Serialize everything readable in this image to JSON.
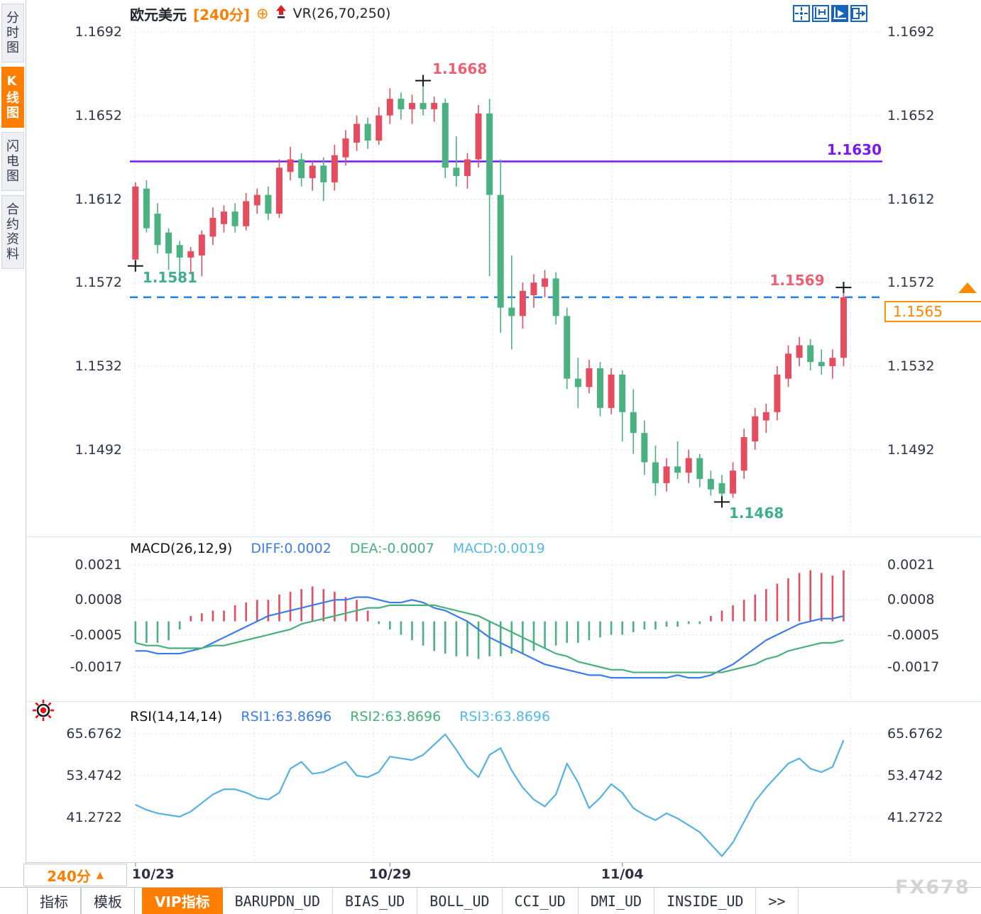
{
  "header": {
    "symbol": "欧元美元",
    "period": "[240分]",
    "indicator": "VR(26,70,250)"
  },
  "toolbar": {
    "icons": [
      {
        "name": "pan-crosshair-icon",
        "active": false
      },
      {
        "name": "y-axis-scale-icon",
        "active": false
      },
      {
        "name": "auto-scroll-icon",
        "active": true
      },
      {
        "name": "jump-latest-icon",
        "active": false
      }
    ]
  },
  "sidebar": {
    "items": [
      {
        "label": "分时图",
        "active": false
      },
      {
        "label": "K线图",
        "active": true
      },
      {
        "label": "闪电图",
        "active": false
      },
      {
        "label": "合约资料",
        "active": false
      }
    ]
  },
  "bottom": {
    "period_label": "240分",
    "period_arrow": "▲",
    "tabs": [
      {
        "label": "指标",
        "style": "cn",
        "active": false
      },
      {
        "label": "模板",
        "style": "cn",
        "active": false
      },
      {
        "label": "VIP指标",
        "style": "cn",
        "active": true
      },
      {
        "label": "BARUPDN_UD",
        "style": "mono",
        "active": false
      },
      {
        "label": "BIAS_UD",
        "style": "mono",
        "active": false
      },
      {
        "label": "BOLL_UD",
        "style": "mono",
        "active": false
      },
      {
        "label": "CCI_UD",
        "style": "mono",
        "active": false
      },
      {
        "label": "DMI_UD",
        "style": "mono",
        "active": false
      },
      {
        "label": "INSIDE_UD",
        "style": "mono",
        "active": false
      },
      {
        "label": ">>",
        "style": "mono",
        "active": false
      }
    ]
  },
  "watermark": "FX678",
  "colors": {
    "up": "#e44d5f",
    "down": "#4bb181",
    "purple_line": "#7a16f2",
    "blue_dashed": "#1e7fe8",
    "diff_line": "#3b7ce8",
    "dea_line": "#47b07a",
    "macd_cyan": "#55b9e8",
    "rsi_line": "#55b1e3",
    "accent_orange": "#ff7e00",
    "anno_red": "#ee5f73",
    "anno_green": "#3fae8c"
  },
  "chart_data": [
    {
      "type": "candlestick",
      "title": "欧元美元 240分",
      "y_ticks": [
        "1.1692",
        "1.1652",
        "1.1612",
        "1.1572",
        "1.1532",
        "1.1492"
      ],
      "y_tick_values": [
        1.1692,
        1.1652,
        1.1612,
        1.1572,
        1.1532,
        1.1492
      ],
      "x_ticks": [
        {
          "label": "10/23",
          "index": 0
        },
        {
          "label": "10/29",
          "index": 23
        },
        {
          "label": "11/04",
          "index": 44
        }
      ],
      "hlines": [
        {
          "value": 1.163,
          "label": "1.1630",
          "style": "solid",
          "color": "#7a16f2"
        },
        {
          "value": 1.1565,
          "label": "1.1565",
          "style": "dashed",
          "color": "#1e7fe8"
        }
      ],
      "price_box": "1.1565",
      "annotations": [
        {
          "text": "1.1581",
          "price": 1.1581,
          "index": 0,
          "color": "#3fae8c",
          "placement": "below-right"
        },
        {
          "text": "1.1668",
          "price": 1.1668,
          "index": 26,
          "color": "#ee5f73",
          "placement": "above-right"
        },
        {
          "text": "1.1569",
          "price": 1.1569,
          "index": 64,
          "color": "#ee5f73",
          "placement": "above-left"
        },
        {
          "text": "1.1468",
          "price": 1.1468,
          "index": 53,
          "color": "#3fae8c",
          "placement": "below-right"
        }
      ],
      "candles": [
        [
          1.1583,
          1.162,
          1.1581,
          1.1618
        ],
        [
          1.1617,
          1.1621,
          1.1596,
          1.1598
        ],
        [
          1.1605,
          1.161,
          1.1586,
          1.159
        ],
        [
          1.1596,
          1.1598,
          1.1578,
          1.1586
        ],
        [
          1.159,
          1.1592,
          1.1574,
          1.1584
        ],
        [
          1.1584,
          1.1589,
          1.1576,
          1.1587
        ],
        [
          1.1585,
          1.1597,
          1.1575,
          1.1595
        ],
        [
          1.1594,
          1.1608,
          1.159,
          1.1603
        ],
        [
          1.16,
          1.1609,
          1.1596,
          1.1606
        ],
        [
          1.1606,
          1.161,
          1.1596,
          1.1599
        ],
        [
          1.1599,
          1.1615,
          1.1597,
          1.1611
        ],
        [
          1.1609,
          1.1617,
          1.1605,
          1.1614
        ],
        [
          1.1614,
          1.1618,
          1.1602,
          1.1605
        ],
        [
          1.1605,
          1.1631,
          1.1603,
          1.1627
        ],
        [
          1.1625,
          1.1637,
          1.1621,
          1.1631
        ],
        [
          1.1631,
          1.1634,
          1.1618,
          1.1622
        ],
        [
          1.1622,
          1.163,
          1.1616,
          1.1628
        ],
        [
          1.1628,
          1.1632,
          1.1611,
          1.162
        ],
        [
          1.162,
          1.1638,
          1.1616,
          1.1633
        ],
        [
          1.1632,
          1.1645,
          1.1628,
          1.1641
        ],
        [
          1.1639,
          1.1652,
          1.1635,
          1.1648
        ],
        [
          1.1648,
          1.1651,
          1.1636,
          1.164
        ],
        [
          1.164,
          1.1656,
          1.1638,
          1.1652
        ],
        [
          1.1652,
          1.1665,
          1.1648,
          1.166
        ],
        [
          1.166,
          1.1663,
          1.165,
          1.1655
        ],
        [
          1.1655,
          1.1662,
          1.1648,
          1.1658
        ],
        [
          1.1658,
          1.1668,
          1.1652,
          1.1655
        ],
        [
          1.1655,
          1.1661,
          1.1649,
          1.1658
        ],
        [
          1.1658,
          1.166,
          1.1622,
          1.1627
        ],
        [
          1.1627,
          1.1642,
          1.1618,
          1.1623
        ],
        [
          1.1623,
          1.1634,
          1.1617,
          1.1631
        ],
        [
          1.1631,
          1.1657,
          1.1627,
          1.1653
        ],
        [
          1.1653,
          1.166,
          1.1575,
          1.1614
        ],
        [
          1.1614,
          1.1631,
          1.1548,
          1.156
        ],
        [
          1.156,
          1.1585,
          1.154,
          1.1556
        ],
        [
          1.1556,
          1.1572,
          1.155,
          1.1568
        ],
        [
          1.1566,
          1.1576,
          1.156,
          1.1572
        ],
        [
          1.157,
          1.1578,
          1.1565,
          1.1574
        ],
        [
          1.1574,
          1.1577,
          1.1552,
          1.1556
        ],
        [
          1.1556,
          1.156,
          1.1521,
          1.1526
        ],
        [
          1.1526,
          1.1536,
          1.1512,
          1.1522
        ],
        [
          1.1522,
          1.1535,
          1.1519,
          1.1531
        ],
        [
          1.1531,
          1.1534,
          1.1508,
          1.1512
        ],
        [
          1.1512,
          1.1531,
          1.1509,
          1.1528
        ],
        [
          1.1528,
          1.153,
          1.1496,
          1.151
        ],
        [
          1.151,
          1.1521,
          1.149,
          1.15
        ],
        [
          1.15,
          1.1506,
          1.148,
          1.1486
        ],
        [
          1.1486,
          1.1494,
          1.147,
          1.1476
        ],
        [
          1.1476,
          1.1488,
          1.1472,
          1.1484
        ],
        [
          1.1484,
          1.1496,
          1.1478,
          1.1481
        ],
        [
          1.1481,
          1.1492,
          1.1476,
          1.1488
        ],
        [
          1.1488,
          1.149,
          1.1474,
          1.1478
        ],
        [
          1.1478,
          1.1482,
          1.147,
          1.1473
        ],
        [
          1.1476,
          1.148,
          1.1468,
          1.1471
        ],
        [
          1.1471,
          1.1486,
          1.1469,
          1.1482
        ],
        [
          1.1482,
          1.1502,
          1.1478,
          1.1498
        ],
        [
          1.1496,
          1.1512,
          1.1492,
          1.1508
        ],
        [
          1.1506,
          1.1514,
          1.15,
          1.151
        ],
        [
          1.151,
          1.1532,
          1.1506,
          1.1528
        ],
        [
          1.1526,
          1.1542,
          1.1522,
          1.1538
        ],
        [
          1.1536,
          1.1546,
          1.1532,
          1.1542
        ],
        [
          1.1542,
          1.1545,
          1.153,
          1.1534
        ],
        [
          1.1534,
          1.154,
          1.1528,
          1.1532
        ],
        [
          1.1532,
          1.154,
          1.1526,
          1.1536
        ],
        [
          1.1536,
          1.1569,
          1.1532,
          1.1565
        ]
      ]
    },
    {
      "type": "macd",
      "title": "MACD(26,12,9)",
      "readouts": [
        {
          "text": "DIFF:0.0002",
          "color": "#3b7ce8"
        },
        {
          "text": "DEA:-0.0007",
          "color": "#47b07a"
        },
        {
          "text": "MACD:0.0019",
          "color": "#55b9e8"
        }
      ],
      "y_ticks": [
        "0.0021",
        "0.0008",
        "-0.0005",
        "-0.0017"
      ],
      "y_tick_values": [
        0.0021,
        0.0008,
        -0.0005,
        -0.0017
      ],
      "hist": [
        -0.0008,
        -0.0008,
        -0.0008,
        -0.0007,
        -0.0003,
        0.0002,
        0.0003,
        0.0004,
        0.0004,
        0.0006,
        0.0007,
        0.0008,
        0.0008,
        0.001,
        0.0011,
        0.0012,
        0.0013,
        0.0012,
        0.0011,
        0.0009,
        0.0008,
        0.0004,
        -0.0001,
        -0.0003,
        -0.0005,
        -0.0007,
        -0.0009,
        -0.0011,
        -0.0012,
        -0.0013,
        -0.0013,
        -0.0014,
        -0.0013,
        -0.0013,
        -0.0012,
        -0.0012,
        -0.0011,
        -0.001,
        -0.0009,
        -0.0008,
        -0.0008,
        -0.0007,
        -0.0006,
        -0.0005,
        -0.0005,
        -0.0004,
        -0.0003,
        -0.0003,
        -0.0002,
        -0.0002,
        -0.0001,
        -0.0001,
        0.0002,
        0.0004,
        0.0006,
        0.0008,
        0.001,
        0.0012,
        0.0014,
        0.0016,
        0.0018,
        0.0019,
        0.0018,
        0.0017,
        0.0019
      ],
      "diff": [
        -0.0011,
        -0.0011,
        -0.0012,
        -0.0012,
        -0.0012,
        -0.0011,
        -0.001,
        -0.0008,
        -0.0006,
        -0.0004,
        -0.0002,
        0.0,
        0.0002,
        0.0003,
        0.0004,
        0.0005,
        0.0006,
        0.0007,
        0.0008,
        0.0008,
        0.0009,
        0.0009,
        0.0008,
        0.0007,
        0.0007,
        0.0008,
        0.0007,
        0.0005,
        0.0004,
        0.0002,
        0.0,
        -0.0003,
        -0.0006,
        -0.0008,
        -0.001,
        -0.0012,
        -0.0014,
        -0.0016,
        -0.0017,
        -0.0018,
        -0.0019,
        -0.002,
        -0.002,
        -0.0021,
        -0.0021,
        -0.0021,
        -0.0021,
        -0.0021,
        -0.0021,
        -0.002,
        -0.0021,
        -0.0021,
        -0.002,
        -0.0018,
        -0.0016,
        -0.0013,
        -0.001,
        -0.0007,
        -0.0005,
        -0.0003,
        -0.0001,
        0.0,
        0.0001,
        0.0001,
        0.0002
      ],
      "dea": [
        -0.0008,
        -0.0009,
        -0.0009,
        -0.001,
        -0.001,
        -0.001,
        -0.001,
        -0.0009,
        -0.0009,
        -0.0008,
        -0.0007,
        -0.0006,
        -0.0005,
        -0.0004,
        -0.0003,
        -0.0001,
        0.0,
        0.0001,
        0.0002,
        0.0003,
        0.0004,
        0.0005,
        0.0005,
        0.0006,
        0.0006,
        0.0006,
        0.0006,
        0.0006,
        0.0005,
        0.0004,
        0.0003,
        0.0002,
        0.0,
        -0.0002,
        -0.0004,
        -0.0006,
        -0.0008,
        -0.001,
        -0.0012,
        -0.0013,
        -0.0015,
        -0.0016,
        -0.0017,
        -0.0018,
        -0.0018,
        -0.0019,
        -0.0019,
        -0.0019,
        -0.0019,
        -0.0019,
        -0.0019,
        -0.0019,
        -0.0019,
        -0.0019,
        -0.0018,
        -0.0017,
        -0.0016,
        -0.0014,
        -0.0013,
        -0.0011,
        -0.001,
        -0.0009,
        -0.0008,
        -0.0008,
        -0.0007
      ]
    },
    {
      "type": "line",
      "title": "RSI(14,14,14)",
      "readouts": [
        {
          "text": "RSI1:63.8696",
          "color": "#3b7ce8"
        },
        {
          "text": "RSI2:63.8696",
          "color": "#47b07a"
        },
        {
          "text": "RSI3:63.8696",
          "color": "#55b9e8"
        }
      ],
      "y_ticks": [
        "65.6762",
        "53.4742",
        "41.2722"
      ],
      "y_tick_values": [
        65.6762,
        53.4742,
        41.2722
      ],
      "values": [
        45,
        43.5,
        42.5,
        42,
        41.5,
        43,
        45.5,
        48,
        49.5,
        49.5,
        48.5,
        47,
        46.5,
        48.5,
        55.5,
        57.5,
        54,
        54.5,
        56,
        57.5,
        53.5,
        53,
        54.5,
        59,
        58.5,
        58,
        59.5,
        62.5,
        65.5,
        61,
        56,
        53,
        59.5,
        61.5,
        55,
        50,
        46.5,
        44.5,
        48,
        57,
        51.5,
        44,
        47,
        51,
        48.5,
        44,
        42,
        40.5,
        42.5,
        41,
        39,
        37,
        33.5,
        30,
        34,
        40,
        46,
        50,
        53.5,
        57,
        58.5,
        55.5,
        54.5,
        56,
        63.8
      ]
    }
  ]
}
